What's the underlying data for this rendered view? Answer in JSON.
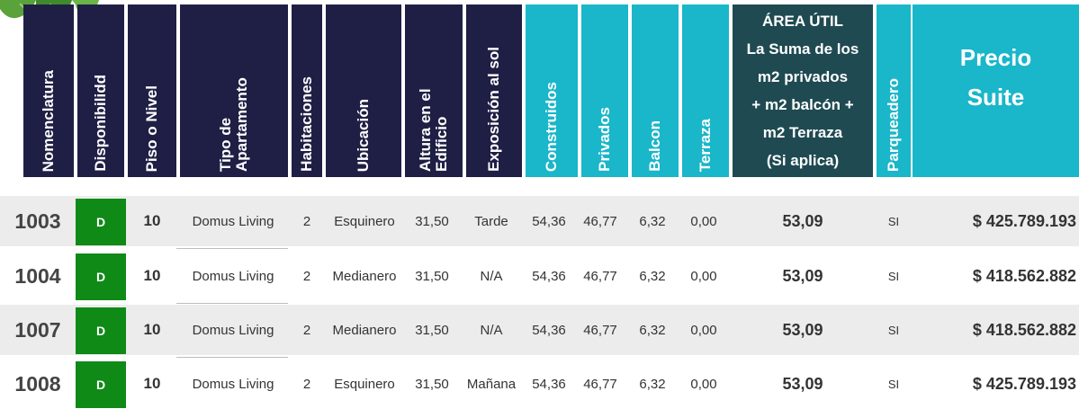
{
  "headers": {
    "nomenclatura": "Nomenclatura",
    "disponibilidad": "Disponibilidd",
    "piso": "Piso o Nivel",
    "tipo": "Tipo de Apartamento",
    "habitaciones": "Habitaciones",
    "ubicacion": "Ubicación",
    "altura": "Altura en el Edificio",
    "exposicion": "Exposición al sol",
    "construidos": "Construidos",
    "privados": "Privados",
    "balcon": "Balcon",
    "terraza": "Terraza",
    "area_util": [
      "ÁREA ÚTIL",
      "La Suma de los",
      "m2 privados",
      "+ m2 balcón +",
      "m2 Terraza",
      "(Si aplica)"
    ],
    "parqueadero": "Parqueadero",
    "precio": [
      "Precio",
      "Suite"
    ]
  },
  "rows": [
    {
      "nomenclatura": "1003",
      "disponibilidad": "D",
      "piso": "10",
      "tipo": "Domus Living",
      "habitaciones": "2",
      "ubicacion": "Esquinero",
      "altura": "31,50",
      "exposicion": "Tarde",
      "construidos": "54,36",
      "privados": "46,77",
      "balcon": "6,32",
      "terraza": "0,00",
      "area_util": "53,09",
      "parqueadero": "SI",
      "precio": "$ 425.789.193"
    },
    {
      "nomenclatura": "1004",
      "disponibilidad": "D",
      "piso": "10",
      "tipo": "Domus Living",
      "habitaciones": "2",
      "ubicacion": "Medianero",
      "altura": "31,50",
      "exposicion": "N/A",
      "construidos": "54,36",
      "privados": "46,77",
      "balcon": "6,32",
      "terraza": "0,00",
      "area_util": "53,09",
      "parqueadero": "SI",
      "precio": "$ 418.562.882"
    },
    {
      "nomenclatura": "1007",
      "disponibilidad": "D",
      "piso": "10",
      "tipo": "Domus Living",
      "habitaciones": "2",
      "ubicacion": "Medianero",
      "altura": "31,50",
      "exposicion": "N/A",
      "construidos": "54,36",
      "privados": "46,77",
      "balcon": "6,32",
      "terraza": "0,00",
      "area_util": "53,09",
      "parqueadero": "SI",
      "precio": "$ 418.562.882"
    },
    {
      "nomenclatura": "1008",
      "disponibilidad": "D",
      "piso": "10",
      "tipo": "Domus Living",
      "habitaciones": "2",
      "ubicacion": "Esquinero",
      "altura": "31,50",
      "exposicion": "Mañana",
      "construidos": "54,36",
      "privados": "46,77",
      "balcon": "6,32",
      "terraza": "0,00",
      "area_util": "53,09",
      "parqueadero": "SI",
      "precio": "$ 425.789.193"
    }
  ],
  "colors": {
    "navy": "#1f1f45",
    "cyan": "#1ab6c9",
    "teal": "#1f4a52",
    "available": "#0f8a17",
    "row_shade": "#ececec"
  },
  "decor": {
    "leaf_icon": "leaf-icon"
  }
}
